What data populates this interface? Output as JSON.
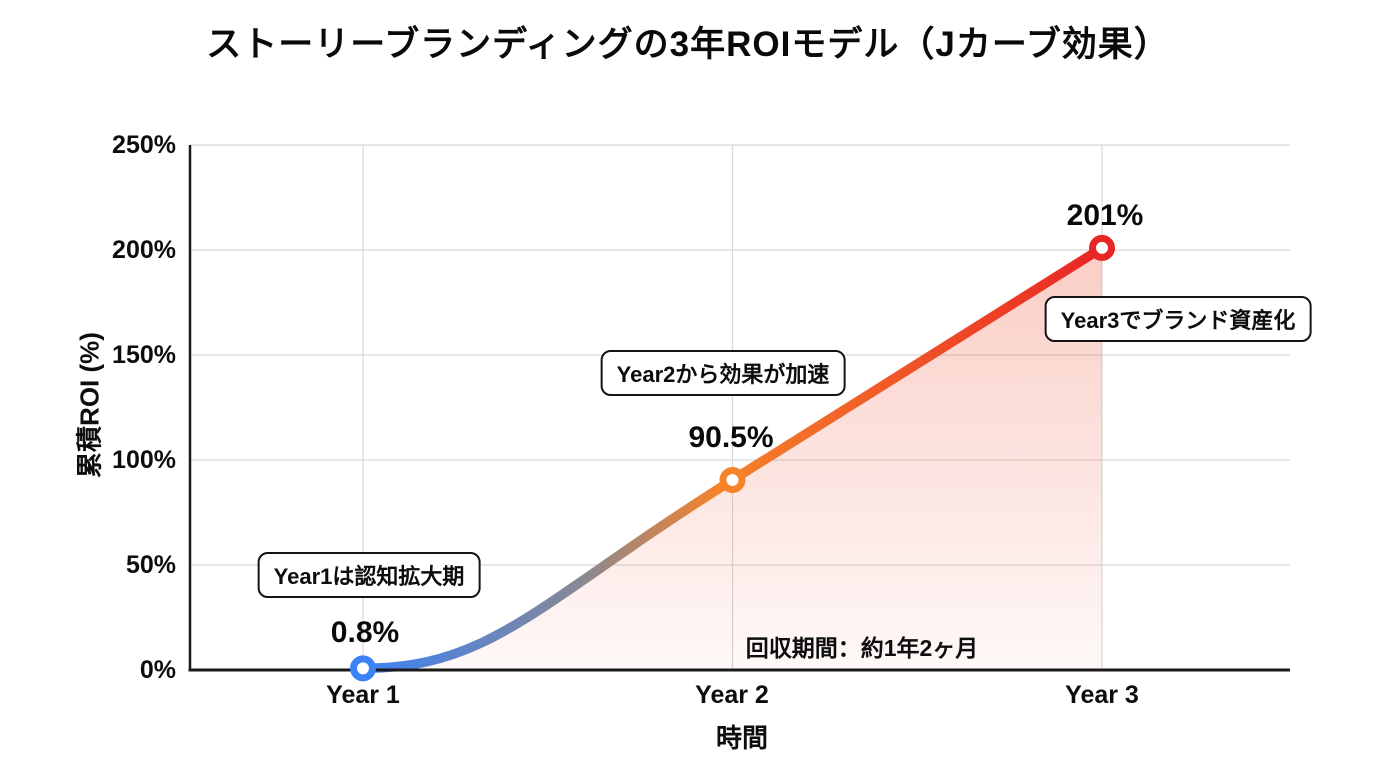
{
  "title": "ストーリーブランディングの3年ROIモデル（Jカーブ効果）",
  "chart_data": {
    "type": "line",
    "title": "ストーリーブランディングの3年ROIモデル（Jカーブ効果）",
    "categories": [
      "Year 1",
      "Year 2",
      "Year 3"
    ],
    "x": [
      1,
      2,
      3
    ],
    "values": [
      0.8,
      90.5,
      201
    ],
    "point_labels": [
      "0.8%",
      "90.5%",
      "201%"
    ],
    "xlabel": "時間",
    "ylabel": "累積ROI (%)",
    "ylim": [
      0,
      250
    ],
    "yticks": [
      "0%",
      "50%",
      "100%",
      "150%",
      "200%",
      "250%"
    ],
    "grid": true,
    "legend_position": "none",
    "curve_shape": "J-curve: flat start, smooth acceleration, straight rise after Year 2",
    "line_gradient_stops": [
      {
        "offset": 0.0,
        "color": "#3b82f6"
      },
      {
        "offset": 0.3,
        "color": "#8a8892"
      },
      {
        "offset": 0.48,
        "color": "#f5832a"
      },
      {
        "offset": 1.0,
        "color": "#e92525"
      }
    ],
    "marker_colors": [
      "#3b82f6",
      "#f5832a",
      "#e92525"
    ],
    "marker_core_color": "#ffffff",
    "area_fill_color": "#ee5a40",
    "grid_color": "#d8d8d8",
    "axis_color": "#1a1a1a",
    "annotations": [
      {
        "text": "Year1は認知拡大期"
      },
      {
        "text": "Year2から効果が加速"
      },
      {
        "text": "Year3でブランド資産化"
      }
    ],
    "note": "回収期間：約1年2ヶ月"
  }
}
